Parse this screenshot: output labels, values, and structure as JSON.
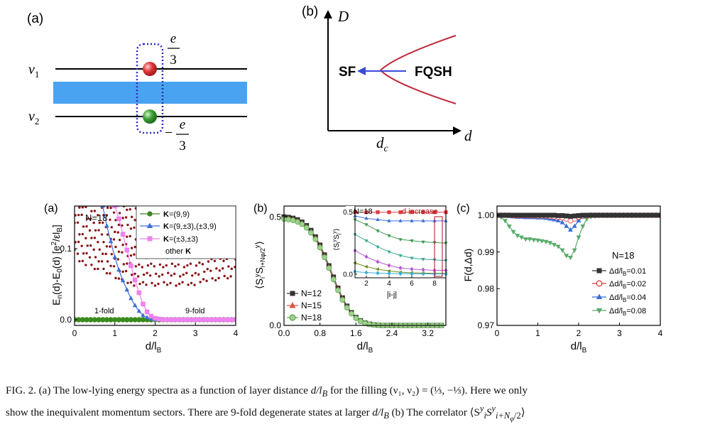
{
  "schematic_a": {
    "label": "(a)",
    "nu1": "ν",
    "nu1_sub": "1",
    "nu2": "ν",
    "nu2_sub": "2",
    "top_charge_num": "e",
    "top_charge_den": "3",
    "bottom_charge_sign": "−",
    "bottom_charge_num": "e",
    "bottom_charge_den": "3",
    "colors": {
      "barrier": "#4aa3f0",
      "top_particle": "#e0393b",
      "bottom_particle": "#3fa33a",
      "dotted_box": "#2a2ab8"
    }
  },
  "schematic_b": {
    "label": "(b)",
    "y_axis": "D",
    "x_axis": "d",
    "critical": "d",
    "critical_sub": "c",
    "phase_left": "SF",
    "phase_right": "FQSH",
    "colors": {
      "boundary": "#c0283a",
      "arrow": "#3a4bd8"
    }
  },
  "chart_data": [
    {
      "panel": "(a)",
      "type": "scatter",
      "xlabel": "d/l",
      "xlabel_sub": "B",
      "ylabel": "E",
      "ylabel_parts": [
        "E",
        "n",
        "(d)-E",
        "0",
        "(d) [e",
        "2",
        "/εl",
        "B",
        "]"
      ],
      "xlim": [
        0,
        4
      ],
      "ylim": [
        -0.008,
        0.16
      ],
      "xticks": [
        "0",
        "1",
        "2",
        "3",
        "4"
      ],
      "yticks": [
        {
          "v": 0.0,
          "label": "0.0"
        },
        {
          "v": 0.1,
          "label": "0.1"
        }
      ],
      "annotations": {
        "n": "N=18",
        "left_degeneracy": "1-fold",
        "right_degeneracy": "9-fold"
      },
      "legend": [
        {
          "name": "K=(9,9)",
          "bold": "K",
          "rest": "=(9,9)"
        },
        {
          "name": "K=(9,±3),(±3,9)",
          "bold": "K",
          "rest": "=(9,±3),(±3,9)"
        },
        {
          "name": "K=(±3,±3)",
          "bold": "K",
          "rest": "=(±3,±3)"
        },
        {
          "name": "other K",
          "pre": "other ",
          "bold": "K"
        }
      ],
      "series": [
        {
          "name": "K=(9,9)",
          "marker": "circle",
          "color": "#3b8a1e",
          "x": [
            0.0,
            0.1,
            0.2,
            0.3,
            0.4,
            0.5,
            0.6,
            0.7,
            0.8,
            0.9,
            1.0,
            1.1,
            1.2,
            1.3,
            1.4,
            1.5,
            1.6,
            1.7,
            1.8,
            1.9,
            2.0,
            2.1,
            2.2,
            2.3,
            2.4,
            2.5,
            2.6,
            2.7,
            2.8,
            2.9,
            3.0,
            3.1,
            3.2,
            3.3,
            3.4,
            3.5,
            3.6,
            3.7,
            3.8,
            3.9,
            4.0
          ],
          "y": [
            0,
            0,
            0,
            0,
            0,
            0,
            0,
            0,
            0,
            0,
            0,
            0,
            0,
            0,
            0,
            0,
            0,
            0,
            0,
            0,
            0,
            0,
            0,
            0,
            0,
            0,
            0,
            0,
            0,
            0,
            0,
            0,
            0,
            0,
            0,
            0,
            0,
            0,
            0,
            0,
            0
          ]
        },
        {
          "name": "K=(9,±3),(±3,9)",
          "marker": "triangle",
          "color": "#3a6fd6",
          "x": [
            0.7,
            0.8,
            0.9,
            1.0,
            1.1,
            1.2,
            1.3,
            1.4,
            1.5,
            1.6,
            1.7,
            1.8,
            1.9,
            2.0,
            2.1,
            2.2,
            2.3,
            2.4,
            2.5,
            2.6,
            2.7,
            2.8,
            2.9,
            3.0,
            3.1,
            3.2,
            3.3,
            3.4,
            3.5,
            3.6,
            3.7,
            3.8,
            3.9,
            4.0
          ],
          "y": [
            0.16,
            0.132,
            0.11,
            0.088,
            0.07,
            0.055,
            0.042,
            0.03,
            0.02,
            0.012,
            0.006,
            0.003,
            0.001,
            0,
            0,
            0,
            0,
            0,
            0,
            0,
            0,
            0,
            0,
            0,
            0,
            0,
            0,
            0,
            0,
            0,
            0,
            0,
            0,
            0
          ]
        },
        {
          "name": "K=(±3,±3)",
          "marker": "square",
          "color": "#ee82ee",
          "x": [
            1.0,
            1.1,
            1.2,
            1.3,
            1.4,
            1.5,
            1.6,
            1.7,
            1.8,
            1.9,
            2.0,
            2.1,
            2.2,
            2.3,
            2.4,
            2.5,
            2.6,
            2.7,
            2.8,
            2.9,
            3.0,
            3.1,
            3.2,
            3.3,
            3.4,
            3.5,
            3.6,
            3.7,
            3.8,
            3.9,
            4.0
          ],
          "y": [
            0.16,
            0.142,
            0.12,
            0.098,
            0.076,
            0.056,
            0.038,
            0.022,
            0.011,
            0.005,
            0.002,
            0.001,
            0,
            0,
            0,
            0,
            0,
            0,
            0,
            0,
            0,
            0,
            0,
            0,
            0,
            0,
            0,
            0,
            0,
            0,
            0
          ]
        },
        {
          "name": "other K",
          "marker": "small-circle",
          "color": "#8b1414",
          "description": "dense columns of levels from ~0.05 up to >0.16 at every d"
        }
      ]
    },
    {
      "panel": "(b)",
      "type": "line",
      "xlabel": "d/l",
      "xlabel_sub": "B",
      "ylabel_parts": [
        "⟨S",
        "i",
        "y",
        "S",
        "i+Nφ/2",
        "y",
        "⟩"
      ],
      "xlim": [
        0,
        3.6
      ],
      "ylim": [
        0,
        0.55
      ],
      "xticks": [
        "0.0",
        "0.8",
        "1.6",
        "2.4",
        "3.2"
      ],
      "yticks": [
        {
          "v": 0.0,
          "label": "0.0"
        },
        {
          "v": 0.5,
          "label": "0.5"
        }
      ],
      "x": [
        0.0,
        0.1,
        0.2,
        0.3,
        0.4,
        0.5,
        0.6,
        0.7,
        0.8,
        0.9,
        1.0,
        1.1,
        1.2,
        1.3,
        1.4,
        1.5,
        1.6,
        1.7,
        1.8,
        1.9,
        2.0,
        2.1,
        2.2,
        2.3,
        2.4,
        2.5,
        2.6,
        2.7,
        2.8,
        2.9,
        3.0,
        3.1,
        3.2,
        3.3,
        3.4,
        3.5
      ],
      "series": [
        {
          "name": "N=12",
          "marker": "square",
          "color": "#333333",
          "values": [
            0.5,
            0.498,
            0.494,
            0.487,
            0.476,
            0.46,
            0.438,
            0.408,
            0.37,
            0.325,
            0.275,
            0.223,
            0.172,
            0.127,
            0.089,
            0.059,
            0.037,
            0.022,
            0.012,
            0.006,
            0.003,
            0.001,
            0,
            0,
            0,
            0,
            0,
            0,
            0,
            0,
            0,
            0,
            0,
            0,
            0,
            0
          ]
        },
        {
          "name": "N=15",
          "marker": "triangle",
          "color": "#e0523e",
          "values": [
            0.495,
            0.493,
            0.489,
            0.482,
            0.471,
            0.455,
            0.433,
            0.403,
            0.365,
            0.32,
            0.27,
            0.218,
            0.168,
            0.123,
            0.086,
            0.057,
            0.035,
            0.021,
            0.011,
            0.005,
            0.002,
            0.001,
            0,
            0,
            0,
            0,
            0,
            0,
            0,
            0,
            0,
            0,
            0,
            0,
            0,
            0
          ]
        },
        {
          "name": "N=18",
          "marker": "circle",
          "color": "#5aa84a",
          "values": [
            0.49,
            0.488,
            0.484,
            0.477,
            0.466,
            0.45,
            0.427,
            0.397,
            0.359,
            0.314,
            0.264,
            0.212,
            0.162,
            0.118,
            0.082,
            0.054,
            0.033,
            0.019,
            0.01,
            0.005,
            0.002,
            0.001,
            0,
            0,
            0,
            0,
            0,
            0,
            0,
            0,
            0,
            0,
            0,
            0,
            0,
            0
          ]
        }
      ],
      "inset": {
        "title": "N=18",
        "note": "d increase",
        "xlabel": "|i-j|",
        "ylabel_parts": [
          "⟨S",
          "i",
          "y",
          "S",
          "j",
          "y",
          "⟩"
        ],
        "xlim": [
          1,
          9
        ],
        "ylim": [
          -0.03,
          0.55
        ],
        "xticks": [
          "2",
          "4",
          "6",
          "8"
        ],
        "yticks": [
          {
            "v": 0.0,
            "label": "0.0"
          },
          {
            "v": 0.5,
            "label": "0.5"
          }
        ],
        "x": [
          1,
          2,
          3,
          4,
          5,
          6,
          7,
          8,
          9
        ],
        "series": [
          {
            "marker": "square",
            "color": "#e0393b",
            "values": [
              0.5,
              0.5,
              0.5,
              0.5,
              0.5,
              0.5,
              0.5,
              0.5,
              0.5
            ]
          },
          {
            "marker": "triangle",
            "color": "#3a6fd6",
            "values": [
              0.47,
              0.45,
              0.44,
              0.43,
              0.43,
              0.43,
              0.43,
              0.43,
              0.43
            ]
          },
          {
            "marker": "tri-down",
            "color": "#3f9a52",
            "values": [
              0.44,
              0.4,
              0.35,
              0.31,
              0.28,
              0.27,
              0.26,
              0.255,
              0.25
            ]
          },
          {
            "marker": "tri-down",
            "color": "#3aaa96",
            "values": [
              0.32,
              0.27,
              0.22,
              0.18,
              0.15,
              0.13,
              0.12,
              0.115,
              0.11
            ]
          },
          {
            "marker": "diamond",
            "color": "#b45ad0",
            "values": [
              0.19,
              0.14,
              0.1,
              0.07,
              0.05,
              0.04,
              0.035,
              0.03,
              0.03
            ]
          },
          {
            "marker": "tri-left",
            "color": "#6a8a1e",
            "values": [
              0.09,
              0.06,
              0.04,
              0.025,
              0.015,
              0.01,
              0.008,
              0.006,
              0.005
            ]
          },
          {
            "marker": "diamond",
            "color": "#3aaed8",
            "values": [
              0.02,
              0.012,
              0.008,
              0.005,
              0.003,
              0.002,
              0.002,
              0.001,
              0.001
            ]
          }
        ]
      }
    },
    {
      "panel": "(c)",
      "type": "line",
      "xlabel": "d/l",
      "xlabel_sub": "B",
      "ylabel": "F(d,Δd)",
      "xlim": [
        0,
        4
      ],
      "ylim": [
        0.97,
        1.0025
      ],
      "xticks": [
        "0",
        "1",
        "2",
        "3",
        "4"
      ],
      "yticks": [
        {
          "v": 0.97,
          "label": "0.97"
        },
        {
          "v": 0.98,
          "label": "0.98"
        },
        {
          "v": 0.99,
          "label": "0.99"
        },
        {
          "v": 1.0,
          "label": "1.00"
        }
      ],
      "annotation": "N=18",
      "legend": [
        {
          "name": "Δd/l",
          "sub": "B",
          "tail": "=0.01"
        },
        {
          "name": "Δd/l",
          "sub": "B",
          "tail": "=0.02"
        },
        {
          "name": "Δd/l",
          "sub": "B",
          "tail": "=0.04"
        },
        {
          "name": "Δd/l",
          "sub": "B",
          "tail": "=0.08"
        }
      ],
      "x": [
        0.0,
        0.1,
        0.2,
        0.3,
        0.4,
        0.5,
        0.6,
        0.7,
        0.8,
        0.9,
        1.0,
        1.1,
        1.2,
        1.3,
        1.4,
        1.5,
        1.6,
        1.7,
        1.8,
        1.9,
        2.0,
        2.1,
        2.2,
        2.3,
        2.4,
        2.5,
        2.6,
        2.7,
        2.8,
        2.9,
        3.0,
        3.1,
        3.2,
        3.3,
        3.4,
        3.5,
        3.6,
        3.7,
        3.8,
        3.9,
        4.0
      ],
      "series": [
        {
          "name": "Δd/lB=0.01",
          "marker": "square",
          "color": "#333333",
          "values": [
            1.0,
            1.0,
            1.0,
            1.0,
            1.0,
            1.0,
            1.0,
            1.0,
            1.0,
            1.0,
            1.0,
            1.0,
            1.0,
            1.0,
            1.0,
            0.9999,
            0.9999,
            0.9998,
            0.9997,
            0.9998,
            0.9999,
            1.0,
            1.0,
            1.0,
            1.0,
            1.0,
            1.0,
            1.0,
            1.0,
            1.0,
            1.0,
            1.0,
            1.0,
            1.0,
            1.0,
            1.0,
            1.0,
            1.0,
            1.0,
            1.0,
            1.0
          ]
        },
        {
          "name": "Δd/lB=0.02",
          "marker": "circle",
          "color": "#e0393b",
          "values": [
            1.0,
            1.0,
            1.0,
            1.0,
            0.9999,
            0.9999,
            0.9999,
            0.9999,
            0.9999,
            0.9999,
            0.9998,
            0.9998,
            0.9998,
            0.9997,
            0.9996,
            0.9995,
            0.9993,
            0.999,
            0.9985,
            0.999,
            0.9995,
            0.9998,
            0.9999,
            1.0,
            1.0,
            1.0,
            1.0,
            1.0,
            1.0,
            1.0,
            1.0,
            1.0,
            1.0,
            1.0,
            1.0,
            1.0,
            1.0,
            1.0,
            1.0,
            1.0,
            1.0
          ]
        },
        {
          "name": "Δd/lB=0.04",
          "marker": "triangle",
          "color": "#3a6fd6",
          "values": [
            1.0,
            0.9999,
            0.9998,
            0.9997,
            0.9996,
            0.9995,
            0.9995,
            0.9994,
            0.9994,
            0.9994,
            0.9993,
            0.9993,
            0.9992,
            0.999,
            0.9988,
            0.9985,
            0.998,
            0.997,
            0.996,
            0.997,
            0.9985,
            0.9995,
            0.9998,
            0.9999,
            1.0,
            1.0,
            1.0,
            1.0,
            1.0,
            1.0,
            1.0,
            1.0,
            1.0,
            1.0,
            1.0,
            1.0,
            1.0,
            1.0,
            1.0,
            1.0,
            1.0
          ]
        },
        {
          "name": "Δd/lB=0.08",
          "marker": "tri-down",
          "color": "#5aab6a",
          "values": [
            1.0,
            0.9995,
            0.9985,
            0.997,
            0.9955,
            0.9945,
            0.994,
            0.9935,
            0.9935,
            0.9933,
            0.9932,
            0.993,
            0.9928,
            0.9925,
            0.992,
            0.9915,
            0.9905,
            0.989,
            0.9885,
            0.9905,
            0.994,
            0.997,
            0.999,
            0.9996,
            0.9998,
            1.0,
            1.0,
            1.0,
            1.0,
            1.0,
            1.0,
            1.0,
            1.0,
            1.0,
            1.0,
            1.0,
            1.0,
            1.0,
            1.0,
            1.0,
            1.0
          ]
        }
      ]
    }
  ],
  "caption": {
    "line1_start": "FIG. 2. (a) The low-lying energy spectra as a function of layer distance ",
    "math_d_over_lb": "d/l",
    "math_lb_sub": "B",
    "line1_mid": " for the filling ",
    "filling_expr": "(ν₁, ν₂) = (⅓, −⅓)",
    "line1_end": ". Here we only",
    "line2_start": "show the inequivalent momentum sectors. There are 9-fold degenerate states at larger ",
    "line2_mid": " (b) The correlator ",
    "correlator_expr": "⟨S",
    "correlator_i": "i",
    "correlator_y": "y",
    "correlator_sub": "i+N",
    "correlator_phi": "φ",
    "correlator_half": "/2",
    "correlator_close": "⟩"
  }
}
